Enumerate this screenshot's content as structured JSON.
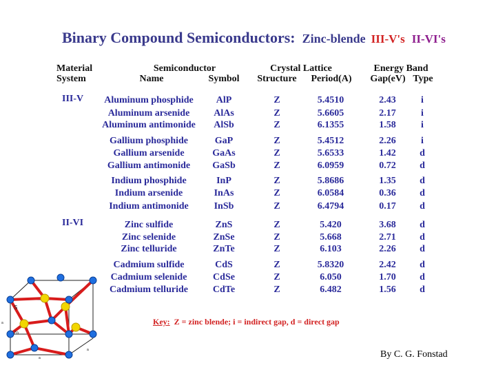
{
  "title": {
    "main": "Binary Compound Semiconductors:",
    "zinc": "Zinc-blende",
    "iiiv": "III-V's",
    "iivi": "II-VI's"
  },
  "headers": {
    "material_1": "Material",
    "material_2": "System",
    "semiconductor_1": "Semiconductor",
    "name": "Name",
    "symbol": "Symbol",
    "lattice_1": "Crystal Lattice",
    "structure": "Structure",
    "period": "Period(A)",
    "band_1": "Energy Band",
    "gap": "Gap(eV)",
    "type": "Type"
  },
  "groups": {
    "iiiv": "III-V",
    "iivi": "II-VI"
  },
  "rows": [
    {
      "name": "Aluminum phosphide",
      "symbol": "AlP",
      "structure": "Z",
      "period": "5.4510",
      "gap": "2.43",
      "type": "i"
    },
    {
      "name": "Aluminum arsenide",
      "symbol": "AlAs",
      "structure": "Z",
      "period": "5.6605",
      "gap": "2.17",
      "type": "i"
    },
    {
      "name": "Aluminum antimonide",
      "symbol": "AlSb",
      "structure": "Z",
      "period": "6.1355",
      "gap": "1.58",
      "type": "i"
    },
    {
      "name": "Gallium phosphide",
      "symbol": "GaP",
      "structure": "Z",
      "period": "5.4512",
      "gap": "2.26",
      "type": "i"
    },
    {
      "name": "Gallium arsenide",
      "symbol": "GaAs",
      "structure": "Z",
      "period": "5.6533",
      "gap": "1.42",
      "type": "d"
    },
    {
      "name": "Gallium antimonide",
      "symbol": "GaSb",
      "structure": "Z",
      "period": "6.0959",
      "gap": "0.72",
      "type": "d"
    },
    {
      "name": "Indium phosphide",
      "symbol": "InP",
      "structure": "Z",
      "period": "5.8686",
      "gap": "1.35",
      "type": "d"
    },
    {
      "name": "Indium arsenide",
      "symbol": "InAs",
      "structure": "Z",
      "period": "6.0584",
      "gap": "0.36",
      "type": "d"
    },
    {
      "name": "Indium antimonide",
      "symbol": "InSb",
      "structure": "Z",
      "period": "6.4794",
      "gap": "0.17",
      "type": "d"
    },
    {
      "name": "Zinc sulfide",
      "symbol": "ZnS",
      "structure": "Z",
      "period": "5.420",
      "gap": "3.68",
      "type": "d"
    },
    {
      "name": "Zinc selenide",
      "symbol": "ZnSe",
      "structure": "Z",
      "period": "5.668",
      "gap": "2.71",
      "type": "d"
    },
    {
      "name": "Zinc telluride",
      "symbol": "ZnTe",
      "structure": "Z",
      "period": "6.103",
      "gap": "2.26",
      "type": "d"
    },
    {
      "name": "Cadmium sulfide",
      "symbol": "CdS",
      "structure": "Z",
      "period": "5.8320",
      "gap": "2.42",
      "type": "d"
    },
    {
      "name": "Cadmium selenide",
      "symbol": "CdSe",
      "structure": "Z",
      "period": "6.050",
      "gap": "1.70",
      "type": "d"
    },
    {
      "name": "Cadmium telluride",
      "symbol": "CdTe",
      "structure": "Z",
      "period": "6.482",
      "gap": "1.56",
      "type": "d"
    }
  ],
  "key": {
    "label": "Key:",
    "text": "Z = zinc blende; i = indirect gap, d = direct gap"
  },
  "credit": "By C. G. Fonstad",
  "figure": {
    "labels": {
      "s": "S",
      "zn": "Zn",
      "a": "a",
      "a2": "a",
      "a3": "a"
    },
    "colors": {
      "corner_atom": "#1f6fe0",
      "inner_atom": "#f2d600",
      "bond": "#d81c1c",
      "edge": "#222222"
    }
  }
}
